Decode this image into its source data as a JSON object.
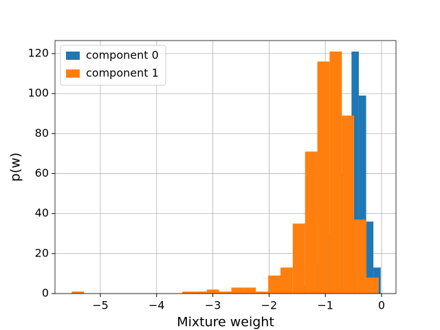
{
  "chart_data": {
    "type": "histogram",
    "xlabel": "Mixture weight",
    "ylabel": "p(w)",
    "xlim": [
      -5.807,
      0.257
    ],
    "ylim": [
      0,
      126.5
    ],
    "xticks": [
      {
        "value": -5,
        "label": "−5"
      },
      {
        "value": -4,
        "label": "−4"
      },
      {
        "value": -3,
        "label": "−3"
      },
      {
        "value": -2,
        "label": "−2"
      },
      {
        "value": -1,
        "label": "−1"
      },
      0
    ],
    "yticks": [
      0,
      20,
      40,
      60,
      80,
      100,
      120
    ],
    "grid": true,
    "legend": "upper left",
    "series": [
      {
        "name": "component 0",
        "color": "#1f77b4",
        "bins": [
          -3.255,
          -3.125,
          -2.996,
          -2.866,
          -2.737,
          -2.607,
          -2.478,
          -2.348,
          -2.218,
          -2.089,
          -1.959,
          -1.83,
          -1.7,
          -1.57,
          -1.441,
          -1.311,
          -1.181,
          -1.052,
          -0.922,
          -0.793,
          -0.663,
          -0.534,
          -0.404,
          -0.274,
          -0.145,
          -0.015
        ],
        "values": [
          1,
          0,
          0,
          0,
          0,
          0,
          0,
          0,
          0,
          0,
          0,
          0,
          0,
          2,
          4,
          8,
          15,
          30,
          45,
          60,
          80,
          121,
          99,
          36,
          13
        ]
      },
      {
        "name": "component 1",
        "color": "#ff7f0e",
        "bins": [
          -5.51,
          -5.292,
          -5.073,
          -4.855,
          -4.636,
          -4.418,
          -4.2,
          -3.981,
          -3.763,
          -3.544,
          -3.326,
          -3.108,
          -2.889,
          -2.671,
          -2.452,
          -2.234,
          -2.016,
          -1.797,
          -1.579,
          -1.36,
          -1.142,
          -0.924,
          -0.705,
          -0.487,
          -0.268,
          -0.05
        ],
        "values": [
          1,
          0,
          0,
          0,
          0,
          0,
          0,
          0,
          0,
          1,
          1,
          2,
          1,
          3,
          3,
          1,
          9,
          13,
          35,
          71,
          116,
          121,
          89,
          37,
          8
        ]
      }
    ]
  }
}
